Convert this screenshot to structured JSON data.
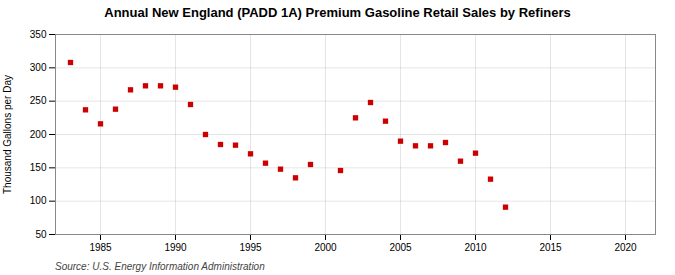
{
  "chart_data": {
    "type": "scatter",
    "title": "Annual New England (PADD 1A) Premium Gasoline Retail Sales by Refiners",
    "ylabel": "Thousand Gallons per Day",
    "source": "Source: U.S. Energy Information Administration",
    "x": [
      1983,
      1984,
      1985,
      1986,
      1987,
      1988,
      1989,
      1990,
      1991,
      1992,
      1993,
      1994,
      1995,
      1996,
      1997,
      1998,
      1999,
      2001,
      2002,
      2003,
      2004,
      2005,
      2006,
      2007,
      2008,
      2009,
      2010,
      2011,
      2012
    ],
    "values": [
      308,
      237,
      216,
      238,
      267,
      273,
      273,
      271,
      245,
      200,
      185,
      184,
      171,
      157,
      148,
      135,
      155,
      146,
      225,
      248,
      220,
      190,
      183,
      183,
      188,
      160,
      172,
      133,
      91
    ],
    "color": "#cc0000",
    "marker": "square",
    "grid": true,
    "xlim": [
      1982,
      2022
    ],
    "xticks": [
      1985,
      1990,
      1995,
      2000,
      2005,
      2010,
      2015,
      2020
    ],
    "ylim": [
      50,
      350
    ],
    "yticks": [
      50,
      100,
      150,
      200,
      250,
      300,
      350
    ]
  }
}
